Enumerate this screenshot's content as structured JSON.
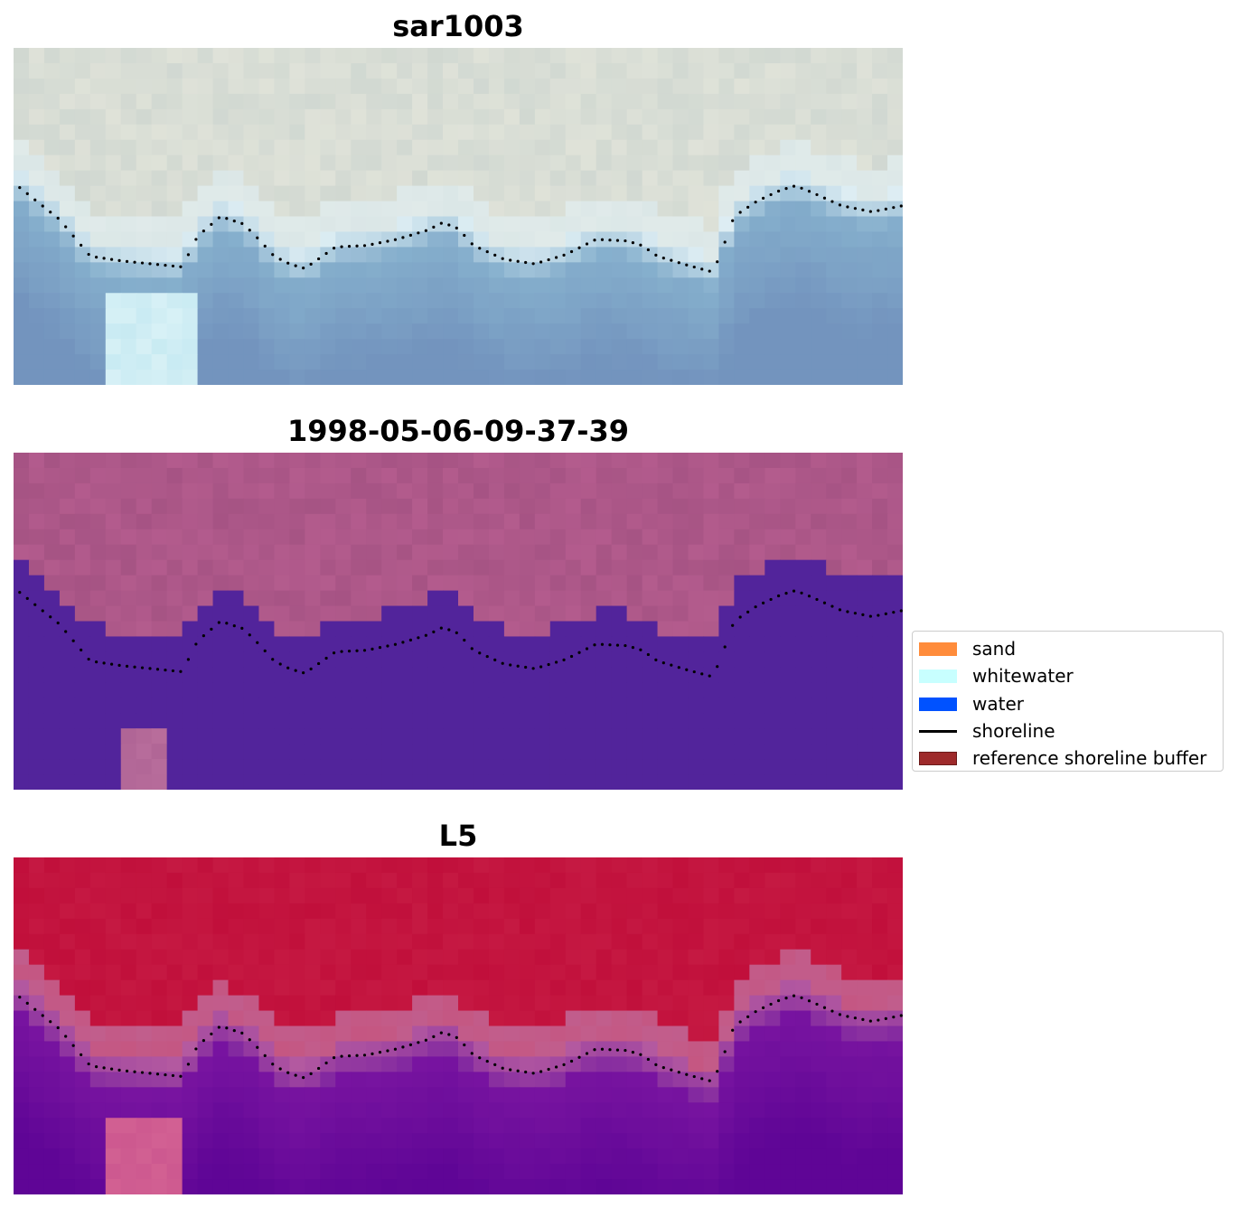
{
  "panels": [
    {
      "title": "sar1003",
      "kind": "rgb"
    },
    {
      "title": "1998-05-06-09-37-39",
      "kind": "classified"
    },
    {
      "title": "L5",
      "kind": "index"
    }
  ],
  "image_grid": {
    "columns": 58,
    "rows": 22
  },
  "colors": {
    "sand": "#ff8c3b",
    "whitewater": "#c8ffff",
    "water": "#0052ff",
    "shoreline": "#000000",
    "buffer_fill": "#9e2a2b",
    "buffer_edge": "#6b1a1a",
    "classified_water": "#52249b",
    "classified_land": "#b45d8e"
  },
  "legend": {
    "items": [
      {
        "label": "sand",
        "type": "patch",
        "color": "#ff8c3b"
      },
      {
        "label": "whitewater",
        "type": "patch",
        "color": "#c8ffff"
      },
      {
        "label": "water",
        "type": "patch",
        "color": "#0052ff"
      },
      {
        "label": "shoreline",
        "type": "line",
        "color": "#000000"
      },
      {
        "label": "reference shoreline buffer",
        "type": "patch",
        "color": "#9e2a2b"
      }
    ]
  }
}
